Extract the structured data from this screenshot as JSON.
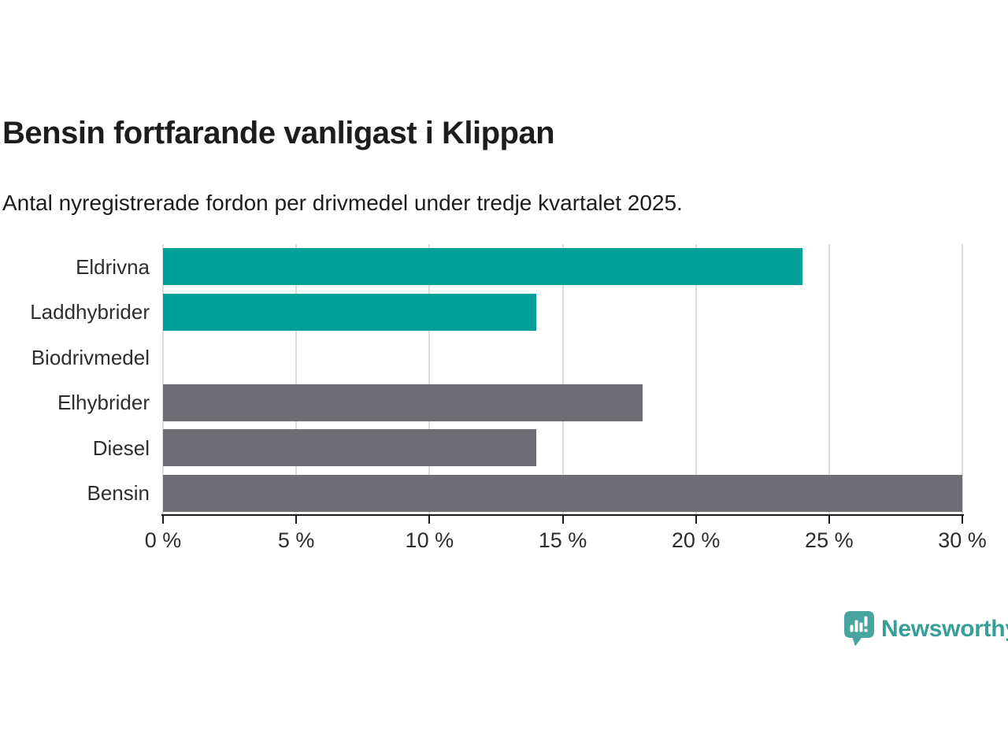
{
  "title": "Bensin fortfarande vanligast i Klippan",
  "subtitle": "Antal nyregistrerade fordon per drivmedel under tredje kvartalet 2025.",
  "chart_data": {
    "type": "bar",
    "orientation": "horizontal",
    "title": "Bensin fortfarande vanligast i Klippan",
    "subtitle": "Antal nyregistrerade fordon per drivmedel under tredje kvartalet 2025.",
    "categories": [
      "Eldrivna",
      "Laddhybrider",
      "Biodrivmedel",
      "Elhybrider",
      "Diesel",
      "Bensin"
    ],
    "values": [
      24,
      14,
      0,
      18,
      14,
      30
    ],
    "unit": "%",
    "xlabel": "",
    "ylabel": "",
    "xlim": [
      0,
      30
    ],
    "xticks": [
      0,
      5,
      10,
      15,
      20,
      25,
      30
    ],
    "xtick_labels": [
      "0 %",
      "5 %",
      "10 %",
      "15 %",
      "20 %",
      "25 %",
      "30 %"
    ],
    "grid": true,
    "legend": false,
    "bar_colors": [
      "#00a099",
      "#00a099",
      "#00a099",
      "#6d6d73",
      "#6d6d73",
      "#6d6d73"
    ]
  },
  "colors": {
    "teal_bar": "#00a099",
    "gray_bar": "#6d6d73",
    "gridline": "#dcdcdc",
    "axis": "#1a1a1a",
    "title_text": "#1d1d1b",
    "label_text": "#2d2d2d",
    "logo_teal": "#47a49f",
    "logo_text_teal": "#379e98"
  },
  "footer": {
    "brand": "Newsworthy",
    "logo_icon": "newsworthy-speech-bubble-bar-chart-icon"
  }
}
